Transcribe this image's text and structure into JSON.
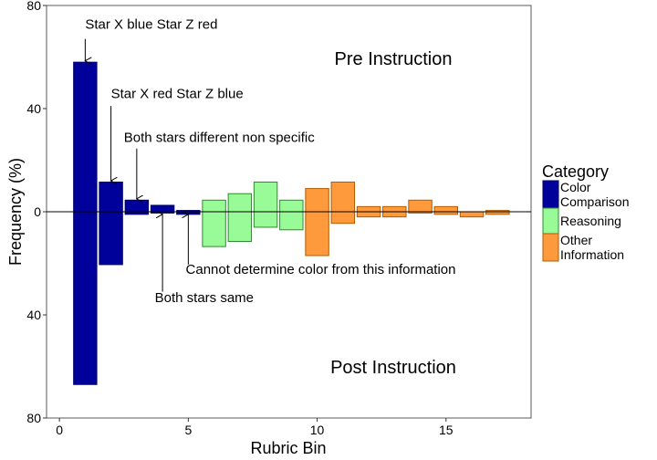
{
  "chart_data": {
    "type": "bar",
    "xlabel": "Rubric Bin",
    "ylabel": "Frequency (%)",
    "xlim": [
      -0.5,
      18.3
    ],
    "ylim": [
      -80,
      80
    ],
    "x_ticks": [
      0,
      5,
      10,
      15
    ],
    "x_tick_labels": [
      "0",
      "5",
      "10",
      "15"
    ],
    "y_ticks": [
      80,
      40,
      0,
      -40,
      -80
    ],
    "y_tick_labels": [
      "80",
      "40",
      "0",
      "40",
      "80"
    ],
    "grid": false,
    "legend": {
      "title": "Category",
      "placement": "right",
      "entries": [
        {
          "label_lines": [
            "Color",
            "Comparison"
          ],
          "color": "#00009A"
        },
        {
          "label_lines": [
            "Reasoning"
          ],
          "color": "#98FB98"
        },
        {
          "label_lines": [
            "Other",
            "Information"
          ],
          "color": "#FF9A3C"
        }
      ]
    },
    "panel_labels": {
      "top": "Pre Instruction",
      "bottom": "Post Instruction"
    },
    "bars": [
      {
        "x": 1,
        "pre": 58,
        "post": 67,
        "category": 0
      },
      {
        "x": 2,
        "pre": 11.5,
        "post": 20.5,
        "category": 0
      },
      {
        "x": 3,
        "pre": 4.5,
        "post": 1,
        "category": 0
      },
      {
        "x": 4,
        "pre": 2.5,
        "post": 0.5,
        "category": 0
      },
      {
        "x": 5,
        "pre": 0.5,
        "post": 1,
        "category": 0
      },
      {
        "x": 6,
        "pre": 4.5,
        "post": 13.5,
        "category": 1
      },
      {
        "x": 7,
        "pre": 7,
        "post": 11.5,
        "category": 1
      },
      {
        "x": 8,
        "pre": 11.5,
        "post": 6,
        "category": 1
      },
      {
        "x": 9,
        "pre": 4.5,
        "post": 7,
        "category": 1
      },
      {
        "x": 10,
        "pre": 9,
        "post": 17,
        "category": 2
      },
      {
        "x": 11,
        "pre": 11.5,
        "post": 4.5,
        "category": 2
      },
      {
        "x": 12,
        "pre": 2,
        "post": 2,
        "category": 2
      },
      {
        "x": 13,
        "pre": 2,
        "post": 2,
        "category": 2
      },
      {
        "x": 14,
        "pre": 4.5,
        "post": 0.5,
        "category": 2
      },
      {
        "x": 15,
        "pre": 2,
        "post": 1,
        "category": 2
      },
      {
        "x": 16,
        "pre": 0,
        "post": 2,
        "category": 2
      },
      {
        "x": 17,
        "pre": 0.5,
        "post": 1,
        "category": 2
      }
    ],
    "annotations": [
      {
        "text": "Star X blue   Star Z red",
        "text_x": 1.0,
        "text_y": 71,
        "arrow_x": 1,
        "arrow_from_y": 67,
        "arrow_to_y": 58.5
      },
      {
        "text": "Star X red   Star Z blue",
        "text_x": 2.0,
        "text_y": 44,
        "arrow_x": 2,
        "arrow_from_y": 41,
        "arrow_to_y": 12
      },
      {
        "text": "Both stars different  non specific",
        "text_x": 2.5,
        "text_y": 27,
        "arrow_x": 3,
        "arrow_from_y": 24.5,
        "arrow_to_y": 5
      },
      {
        "text": "Cannot determine color from this information",
        "text_x": 4.9,
        "text_y": -24,
        "arrow_x": 5,
        "arrow_from_y": -20.5,
        "arrow_to_y": -1
      },
      {
        "text": "Both stars same",
        "text_x": 3.7,
        "text_y": -35,
        "arrow_x": 4,
        "arrow_from_y": -31,
        "arrow_to_y": -1
      }
    ]
  }
}
